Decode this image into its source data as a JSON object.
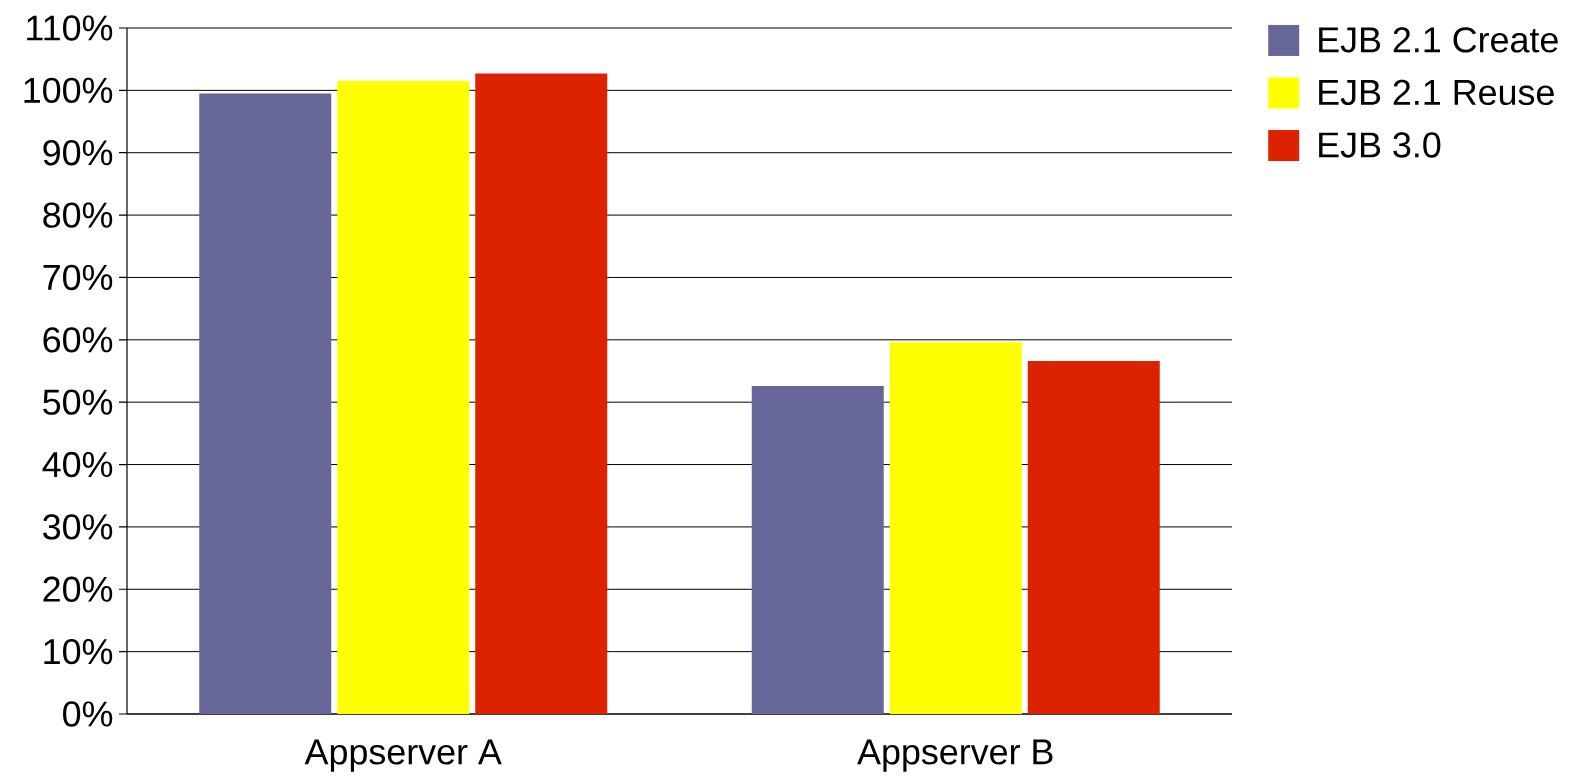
{
  "chart_data": {
    "type": "bar",
    "categories": [
      "Appserver A",
      "Appserver B"
    ],
    "series": [
      {
        "name": "EJB 2.1 Create",
        "color": "#666699",
        "values": [
          99.5,
          52.6
        ]
      },
      {
        "name": "EJB 2.1 Reuse",
        "color": "#ffff00",
        "values": [
          101.5,
          59.6
        ]
      },
      {
        "name": "EJB 3.0",
        "color": "#dd2200",
        "values": [
          102.7,
          56.6
        ]
      }
    ],
    "ylim": [
      0,
      110
    ],
    "yticks": [
      {
        "value": 0,
        "label": "0%"
      },
      {
        "value": 10,
        "label": "10%"
      },
      {
        "value": 20,
        "label": "20%"
      },
      {
        "value": 30,
        "label": "30%"
      },
      {
        "value": 40,
        "label": "40%"
      },
      {
        "value": 50,
        "label": "50%"
      },
      {
        "value": 60,
        "label": "60%"
      },
      {
        "value": 70,
        "label": "70%"
      },
      {
        "value": 80,
        "label": "80%"
      },
      {
        "value": 90,
        "label": "90%"
      },
      {
        "value": 100,
        "label": "100%"
      },
      {
        "value": 110,
        "label": "110%"
      }
    ],
    "grid": "y",
    "legend": "top right"
  }
}
